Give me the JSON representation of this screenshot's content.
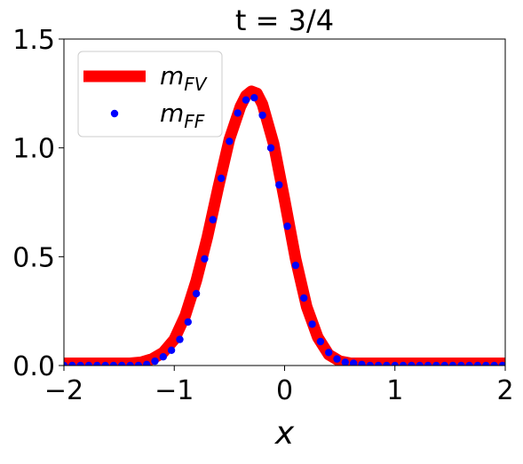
{
  "chart_data": {
    "type": "line",
    "title": "t = 3/4",
    "xlabel": "x",
    "ylabel": "",
    "xlim": [
      -2,
      2
    ],
    "ylim": [
      0,
      1.5
    ],
    "xticks": [
      "−2",
      "−1",
      "0",
      "1",
      "2"
    ],
    "yticks": [
      "0.0",
      "0.5",
      "1.0",
      "1.5"
    ],
    "grid": false,
    "legend_position": "top-left",
    "series": [
      {
        "name": "m_FV",
        "style": "line",
        "color": "#ff0000",
        "x": [
          -2.0,
          -1.8,
          -1.6,
          -1.4,
          -1.3,
          -1.2,
          -1.1,
          -1.0,
          -0.9,
          -0.8,
          -0.7,
          -0.6,
          -0.5,
          -0.4,
          -0.35,
          -0.3,
          -0.25,
          -0.2,
          -0.1,
          0.0,
          0.1,
          0.2,
          0.3,
          0.4,
          0.5,
          0.6,
          0.7,
          0.8,
          1.0,
          1.2,
          1.5,
          2.0
        ],
        "y": [
          0.01,
          0.01,
          0.01,
          0.01,
          0.015,
          0.03,
          0.06,
          0.12,
          0.23,
          0.39,
          0.59,
          0.82,
          1.04,
          1.19,
          1.24,
          1.26,
          1.25,
          1.2,
          1.02,
          0.76,
          0.49,
          0.27,
          0.13,
          0.05,
          0.02,
          0.01,
          0.01,
          0.01,
          0.01,
          0.01,
          0.01,
          0.01
        ]
      },
      {
        "name": "m_FF",
        "style": "markers",
        "color": "#0000ff",
        "x": [
          -2.0,
          -1.925,
          -1.85,
          -1.775,
          -1.7,
          -1.625,
          -1.55,
          -1.475,
          -1.4,
          -1.325,
          -1.25,
          -1.175,
          -1.1,
          -1.025,
          -0.95,
          -0.875,
          -0.8,
          -0.725,
          -0.65,
          -0.575,
          -0.5,
          -0.425,
          -0.35,
          -0.275,
          -0.2,
          -0.125,
          -0.05,
          0.025,
          0.1,
          0.175,
          0.25,
          0.325,
          0.4,
          0.475,
          0.55,
          0.625,
          0.7,
          0.775,
          0.85,
          0.925,
          1.0,
          1.075,
          1.15,
          1.225,
          1.3,
          1.375,
          1.45,
          1.525,
          1.6,
          1.675,
          1.75,
          1.825,
          1.9,
          1.975
        ],
        "y": [
          0.0,
          0.0,
          0.0,
          0.0,
          0.0,
          0.0,
          0.0,
          0.0,
          0.0,
          0.0,
          0.005,
          0.02,
          0.04,
          0.07,
          0.12,
          0.2,
          0.33,
          0.49,
          0.67,
          0.86,
          1.03,
          1.16,
          1.22,
          1.23,
          1.15,
          1.0,
          0.83,
          0.64,
          0.46,
          0.31,
          0.19,
          0.11,
          0.06,
          0.03,
          0.015,
          0.01,
          0.005,
          0.0,
          0.0,
          0.0,
          0.0,
          0.0,
          0.0,
          0.0,
          0.0,
          0.0,
          0.0,
          0.0,
          0.0,
          0.0,
          0.0,
          0.0,
          0.0,
          0.0
        ]
      }
    ],
    "legend": [
      {
        "base": "m",
        "sub": "FV"
      },
      {
        "base": "m",
        "sub": "FF"
      }
    ]
  }
}
